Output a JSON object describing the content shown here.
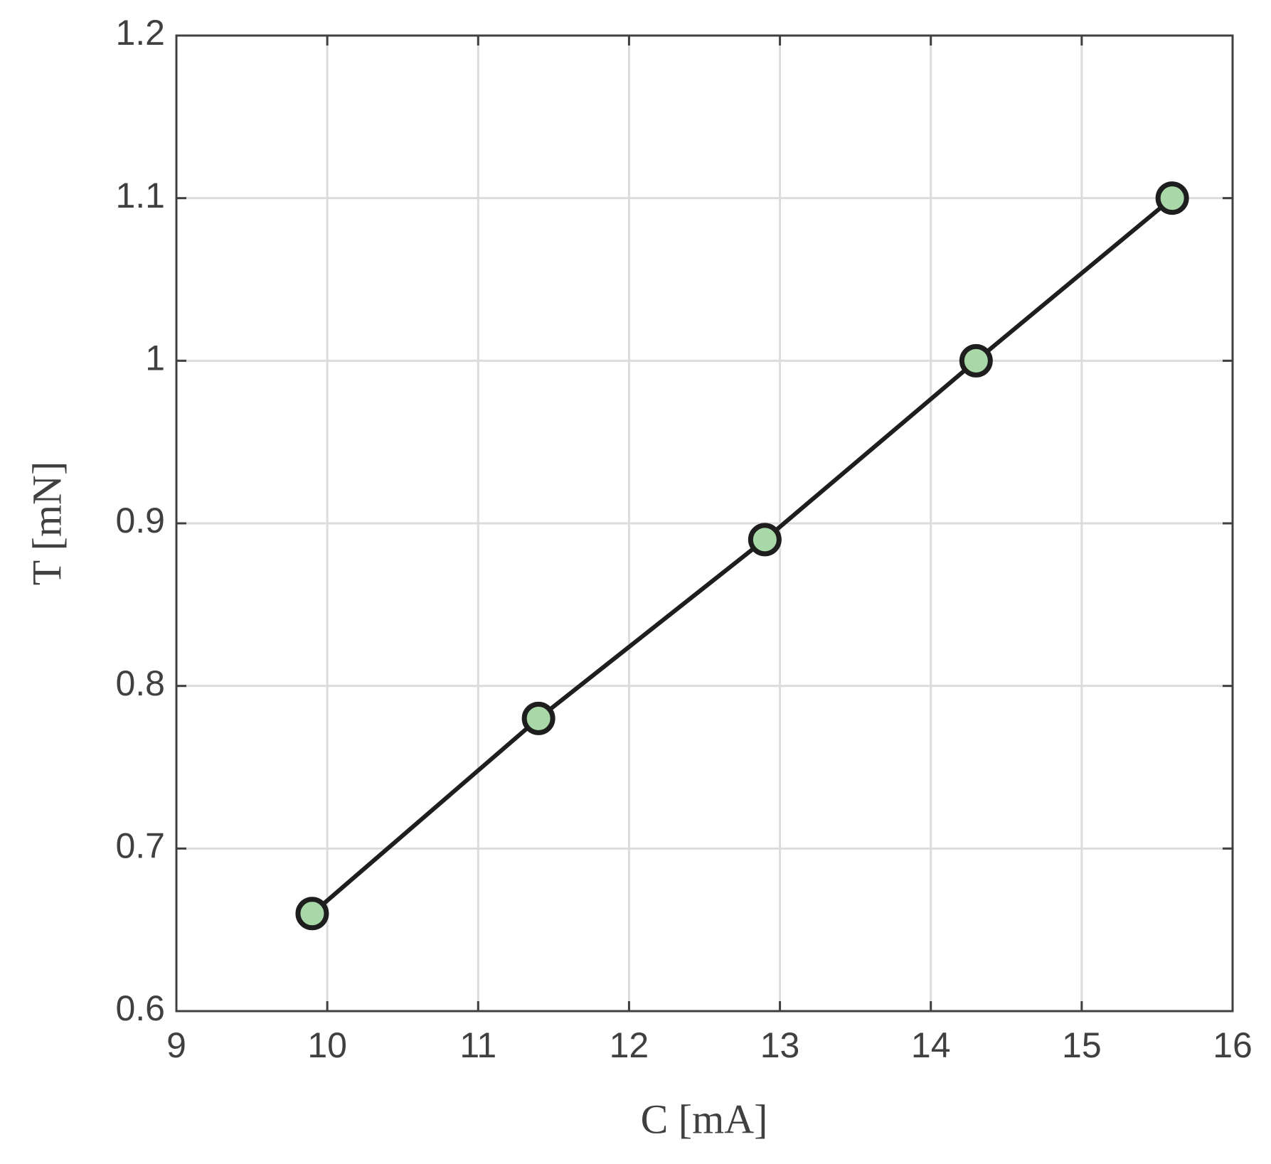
{
  "chart_data": {
    "type": "line",
    "xlabel": "C [mA]",
    "ylabel": "T [mN]",
    "x": [
      9.9,
      11.4,
      12.9,
      14.3,
      15.6
    ],
    "series": [
      {
        "color": "#1e1e1e",
        "marker_color": "#a8d8a8",
        "values": [
          0.66,
          0.78,
          0.89,
          1.0,
          1.1
        ]
      }
    ],
    "xlim": [
      9,
      16
    ],
    "xticks": [
      9,
      10,
      11,
      12,
      13,
      14,
      15,
      16
    ],
    "ylim": [
      0.6,
      1.2
    ],
    "yticks": [
      0.6,
      0.7,
      0.8,
      0.9,
      1,
      1.1,
      1.2
    ],
    "grid": true
  }
}
